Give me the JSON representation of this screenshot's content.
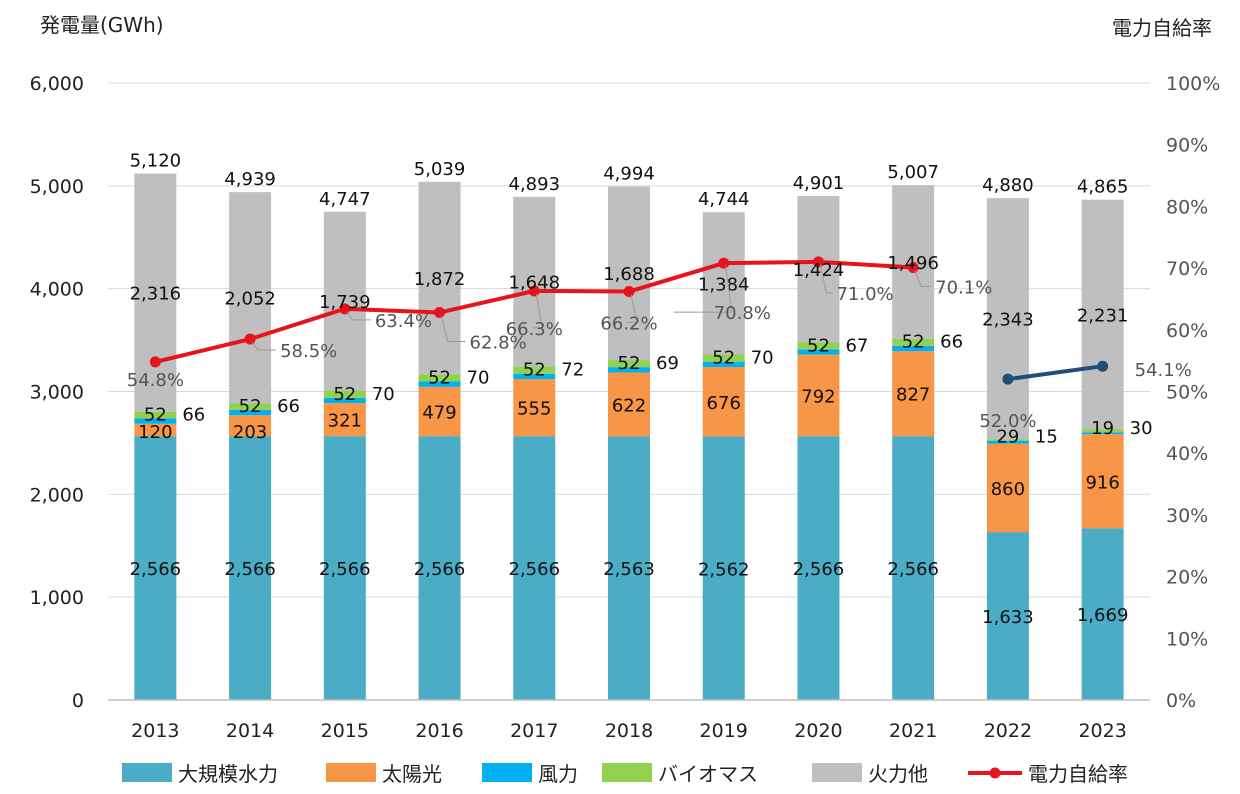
{
  "chart_data": {
    "type": "bar",
    "stacked": true,
    "left_axis_title": "発電量(GWh)",
    "right_axis_title": "電力自給率",
    "categories": [
      "2013",
      "2014",
      "2015",
      "2016",
      "2017",
      "2018",
      "2019",
      "2020",
      "2021",
      "2022",
      "2023"
    ],
    "ylim": [
      0,
      6000
    ],
    "yticks": [
      0,
      1000,
      2000,
      3000,
      4000,
      5000,
      6000
    ],
    "ytick_labels": [
      "0",
      "1,000",
      "2,000",
      "3,000",
      "4,000",
      "5,000",
      "6,000"
    ],
    "y2lim": [
      0,
      100
    ],
    "y2ticks": [
      0,
      10,
      20,
      30,
      40,
      50,
      60,
      70,
      80,
      90,
      100
    ],
    "y2tick_labels": [
      "0%",
      "10%",
      "20%",
      "30%",
      "40%",
      "50%",
      "60%",
      "70%",
      "80%",
      "90%",
      "100%"
    ],
    "series": [
      {
        "name": "大規模水力",
        "color": "#4bacc6",
        "values": [
          2566,
          2566,
          2566,
          2566,
          2566,
          2563,
          2562,
          2566,
          2566,
          1633,
          1669
        ],
        "labels": [
          "2,566",
          "2,566",
          "2,566",
          "2,566",
          "2,566",
          "2,563",
          "2,562",
          "2,566",
          "2,566",
          "1,633",
          "1,669"
        ]
      },
      {
        "name": "太陽光",
        "color": "#f79646",
        "values": [
          120,
          203,
          321,
          479,
          555,
          622,
          676,
          792,
          827,
          860,
          916
        ],
        "labels": [
          "120",
          "203",
          "321",
          "479",
          "555",
          "622",
          "676",
          "792",
          "827",
          "860",
          "916"
        ]
      },
      {
        "name": "風力",
        "color": "#00b0f0",
        "values": [
          52,
          52,
          52,
          52,
          52,
          52,
          52,
          52,
          52,
          29,
          19
        ],
        "labels": [
          "52",
          "52",
          "52",
          "52",
          "52",
          "52",
          "52",
          "52",
          "52",
          "29",
          "19"
        ]
      },
      {
        "name": "バイオマス",
        "color": "#92d050",
        "values": [
          66,
          66,
          70,
          70,
          72,
          69,
          70,
          67,
          66,
          15,
          30
        ],
        "labels": [
          "66",
          "66",
          "70",
          "70",
          "72",
          "69",
          "70",
          "67",
          "66",
          "15",
          "30"
        ]
      },
      {
        "name": "火力他",
        "color": "#bfbfbf",
        "values": [
          2316,
          2052,
          1739,
          1872,
          1648,
          1688,
          1384,
          1424,
          1496,
          2343,
          2231
        ],
        "labels": [
          "2,316",
          "2,052",
          "1,739",
          "1,872",
          "1,648",
          "1,688",
          "1,384",
          "1,424",
          "1,496",
          "2,343",
          "2,231"
        ]
      }
    ],
    "totals": [
      5120,
      4939,
      4747,
      5039,
      4893,
      4994,
      4744,
      4901,
      5007,
      4880,
      4865
    ],
    "total_labels": [
      "5,120",
      "4,939",
      "4,747",
      "5,039",
      "4,893",
      "4,994",
      "4,744",
      "4,901",
      "5,007",
      "4,880",
      "4,865"
    ],
    "line": {
      "name": "電力自給率",
      "color": "#e8141b",
      "color_recent": "#1f4e79",
      "values": [
        54.8,
        58.5,
        63.4,
        62.8,
        66.3,
        66.2,
        70.8,
        71.0,
        70.1,
        52.0,
        54.1
      ],
      "labels": [
        "54.8%",
        "58.5%",
        "63.4%",
        "62.8%",
        "66.3%",
        "66.2%",
        "70.8%",
        "71.0%",
        "70.1%",
        "52.0%",
        "54.1%"
      ],
      "break_after_index": 8
    },
    "legend": [
      {
        "label": "大規模水力",
        "color": "#4bacc6",
        "kind": "box"
      },
      {
        "label": "太陽光",
        "color": "#f79646",
        "kind": "box"
      },
      {
        "label": "風力",
        "color": "#00b0f0",
        "kind": "box"
      },
      {
        "label": "バイオマス",
        "color": "#92d050",
        "kind": "box"
      },
      {
        "label": "火力他",
        "color": "#bfbfbf",
        "kind": "box"
      },
      {
        "label": "電力自給率",
        "color": "#e8141b",
        "kind": "line"
      }
    ]
  }
}
